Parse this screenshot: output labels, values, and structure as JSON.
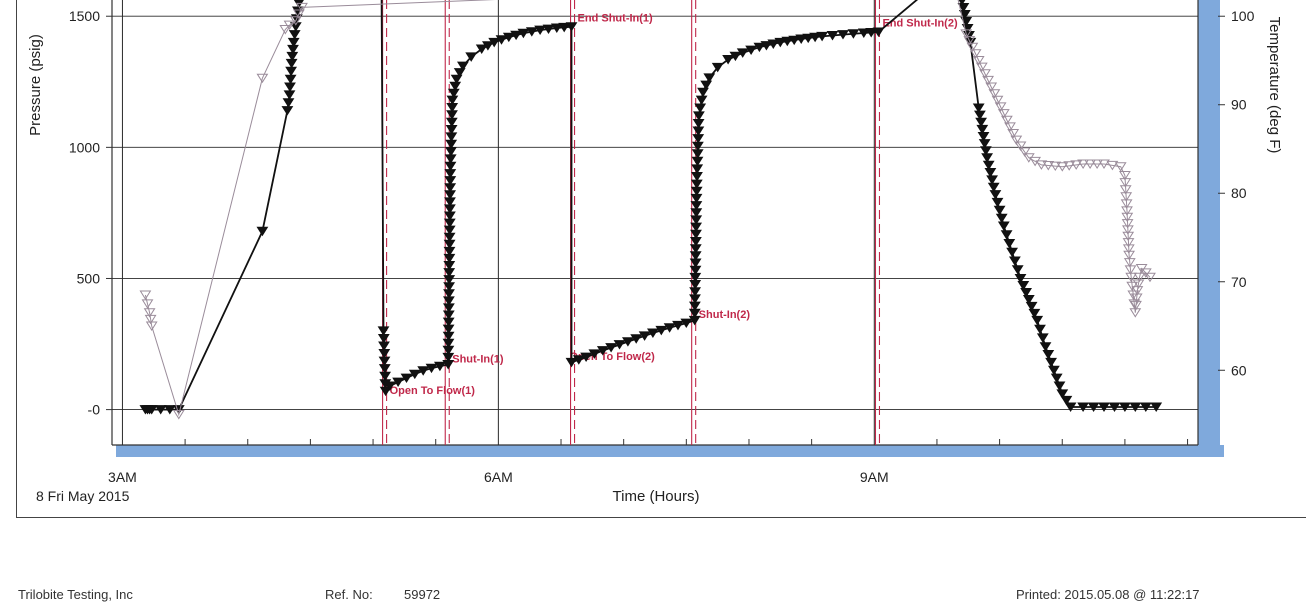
{
  "chart_data": {
    "type": "line",
    "xlabel": "Time (Hours)",
    "date_label": "8 Fri May 2015",
    "ylabel_left": "Pressure (psig)",
    "ylabel_right": "Temperature (deg F)",
    "x_ticks": [
      {
        "value": "03:00",
        "label": "3AM"
      },
      {
        "value": "06:00",
        "label": "6AM"
      },
      {
        "value": "09:00",
        "label": "9AM"
      }
    ],
    "xlim": [
      "02:55",
      "11:35"
    ],
    "y_left_ticks": [
      {
        "value": 1500,
        "label": "1500"
      },
      {
        "value": 1000,
        "label": "1000"
      },
      {
        "value": 500,
        "label": "500"
      },
      {
        "value": 0,
        "label": "-0"
      }
    ],
    "ylim_left": [
      -135,
      1600
    ],
    "y_right_ticks": [
      {
        "value": 100,
        "label": "100"
      },
      {
        "value": 90,
        "label": "90"
      },
      {
        "value": 80,
        "label": "80"
      },
      {
        "value": 70,
        "label": "70"
      },
      {
        "value": 60,
        "label": "60"
      }
    ],
    "grid": true,
    "colors": {
      "pressure": "#111111",
      "temperature": "#9a8c9a",
      "event": "#c0284a",
      "grid": "#2a2a2a",
      "axis_shadow": "#7fa9dc"
    },
    "events": [
      {
        "time": "05:06",
        "label": "Open To Flow(1)",
        "label_pressure": 60
      },
      {
        "time": "05:36",
        "label": "Shut-In(1)",
        "label_pressure": 180
      },
      {
        "time": "06:36",
        "label": "End Shut-In(1)",
        "label_pressure": 1480
      },
      {
        "time": "07:34",
        "label": "Shut-In(2)",
        "label_pressure": 350
      },
      {
        "time": "09:02",
        "label": "End Shut-In(2)",
        "label_pressure": 1460
      }
    ],
    "flow_markers": [
      {
        "time": "06:35",
        "label": "Open To Flow(2)",
        "label_pressure": 190
      }
    ],
    "series": [
      {
        "key": "pressure",
        "axis": "left",
        "marker": "filled-triangle-down",
        "points": [
          [
            "03:11",
            0
          ],
          [
            "03:12",
            0
          ],
          [
            "03:13",
            0
          ],
          [
            "03:14",
            0
          ],
          [
            "03:27",
            0
          ],
          [
            "04:07",
            680
          ],
          [
            "04:19",
            1140
          ],
          [
            "04:20",
            1200
          ],
          [
            "04:21",
            1320
          ],
          [
            "04:22",
            1400
          ],
          [
            "04:23",
            1460
          ],
          [
            "04:24",
            1520
          ],
          [
            "04:25",
            1580
          ],
          [
            "04:27",
            1620
          ],
          [
            "05:04",
            1700
          ],
          [
            "05:05",
            300
          ],
          [
            "05:06",
            70
          ],
          [
            "05:08",
            90
          ],
          [
            "05:12",
            105
          ],
          [
            "05:16",
            120
          ],
          [
            "05:20",
            135
          ],
          [
            "05:24",
            148
          ],
          [
            "05:28",
            158
          ],
          [
            "05:32",
            165
          ],
          [
            "05:36",
            172
          ],
          [
            "05:37",
            900
          ],
          [
            "05:38",
            1180
          ],
          [
            "05:40",
            1260
          ],
          [
            "05:43",
            1310
          ],
          [
            "05:47",
            1345
          ],
          [
            "05:52",
            1375
          ],
          [
            "05:58",
            1400
          ],
          [
            "06:05",
            1420
          ],
          [
            "06:12",
            1435
          ],
          [
            "06:20",
            1447
          ],
          [
            "06:28",
            1455
          ],
          [
            "06:35",
            1460
          ],
          [
            "06:35",
            180
          ],
          [
            "06:42",
            200
          ],
          [
            "06:50",
            225
          ],
          [
            "06:58",
            248
          ],
          [
            "07:06",
            270
          ],
          [
            "07:14",
            292
          ],
          [
            "07:22",
            312
          ],
          [
            "07:30",
            330
          ],
          [
            "07:34",
            340
          ],
          [
            "07:35",
            860
          ],
          [
            "07:36",
            1120
          ],
          [
            "07:38",
            1210
          ],
          [
            "07:41",
            1265
          ],
          [
            "07:45",
            1305
          ],
          [
            "07:50",
            1335
          ],
          [
            "07:57",
            1360
          ],
          [
            "08:05",
            1382
          ],
          [
            "08:15",
            1400
          ],
          [
            "08:25",
            1413
          ],
          [
            "08:35",
            1423
          ],
          [
            "08:45",
            1430
          ],
          [
            "08:55",
            1436
          ],
          [
            "09:02",
            1440
          ],
          [
            "09:38",
            1680
          ],
          [
            "09:42",
            1560
          ],
          [
            "09:46",
            1400
          ],
          [
            "09:50",
            1150
          ],
          [
            "09:54",
            960
          ],
          [
            "09:58",
            820
          ],
          [
            "10:02",
            700
          ],
          [
            "10:06",
            600
          ],
          [
            "10:10",
            500
          ],
          [
            "10:14",
            420
          ],
          [
            "10:18",
            340
          ],
          [
            "10:22",
            240
          ],
          [
            "10:26",
            150
          ],
          [
            "10:30",
            60
          ],
          [
            "10:34",
            10
          ],
          [
            "10:40",
            10
          ],
          [
            "10:50",
            10
          ],
          [
            "11:00",
            10
          ],
          [
            "11:10",
            10
          ],
          [
            "11:15",
            10
          ]
        ]
      },
      {
        "key": "temperature",
        "axis": "right",
        "marker": "open-triangle-down",
        "points": [
          [
            "03:11",
            68.5
          ],
          [
            "03:12",
            67.5
          ],
          [
            "03:13",
            66.5
          ],
          [
            "03:14",
            65
          ],
          [
            "03:27",
            55
          ],
          [
            "04:07",
            93
          ],
          [
            "04:18",
            98.5
          ],
          [
            "04:20",
            99
          ],
          [
            "04:23",
            99.5
          ],
          [
            "04:26",
            101
          ],
          [
            "09:38",
            104
          ],
          [
            "09:44",
            98
          ],
          [
            "09:50",
            95
          ],
          [
            "09:56",
            92
          ],
          [
            "10:02",
            89
          ],
          [
            "10:08",
            86
          ],
          [
            "10:14",
            84
          ],
          [
            "10:20",
            83.2
          ],
          [
            "10:30",
            83
          ],
          [
            "10:40",
            83.3
          ],
          [
            "10:50",
            83.3
          ],
          [
            "10:58",
            83
          ],
          [
            "11:00",
            82
          ],
          [
            "11:01",
            78
          ],
          [
            "11:02",
            73
          ],
          [
            "11:03",
            70.5
          ],
          [
            "11:04",
            68.5
          ],
          [
            "11:05",
            66.5
          ],
          [
            "11:06",
            69
          ],
          [
            "11:07",
            70.5
          ],
          [
            "11:08",
            71.5
          ],
          [
            "11:10",
            71
          ],
          [
            "11:12",
            70.5
          ]
        ]
      }
    ]
  },
  "footer": {
    "company": "Trilobite Testing, Inc",
    "ref_label": "Ref. No:",
    "ref_value": "59972",
    "printed": "Printed: 2015.05.08 @ 11:22:17"
  }
}
